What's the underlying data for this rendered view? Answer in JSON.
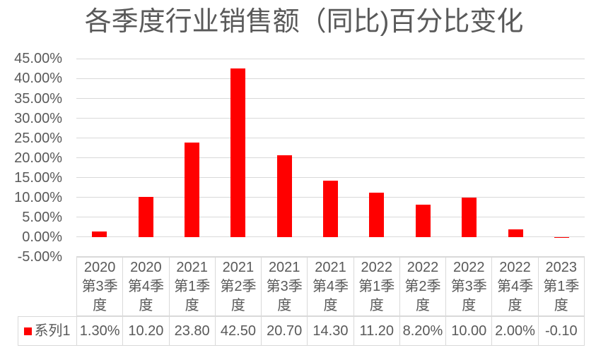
{
  "chart_data": {
    "type": "bar",
    "title": "各季度行业销售额（同比)百分比变化",
    "categories": [
      "2020第3季度",
      "2020第4季度",
      "2021第1季度",
      "2021第2季度",
      "2021第3季度",
      "2021第4季度",
      "2022第1季度",
      "2022第2季度",
      "2022第3季度",
      "2022第4季度",
      "2023第1季度"
    ],
    "series": [
      {
        "name": "系列1",
        "values": [
          1.3,
          10.2,
          23.8,
          42.5,
          20.7,
          14.3,
          11.2,
          8.2,
          10.0,
          2.0,
          -0.1
        ]
      }
    ],
    "xlabel": "",
    "ylabel": "",
    "ylim": [
      -5,
      45
    ],
    "y_tick_step": 5,
    "y_tick_labels": [
      "45.00%",
      "40.00%",
      "35.00%",
      "30.00%",
      "25.00%",
      "20.00%",
      "15.00%",
      "10.00%",
      "5.00%",
      "0.00%",
      "-5.00%"
    ],
    "grid": "horizontal",
    "legend_position": "data-table-left",
    "bar_color": "#FF0000"
  },
  "table": {
    "legend_label": "系列1",
    "header_cells": [
      "2020\n第3季\n度",
      "2020\n第4季\n度",
      "2021\n第1季\n度",
      "2021\n第2季\n度",
      "2021\n第3季\n度",
      "2021\n第4季\n度",
      "2022\n第1季\n度",
      "2022\n第2季\n度",
      "2022\n第3季\n度",
      "2022\n第4季\n度",
      "2023\n第1季\n度"
    ],
    "value_cells": [
      "1.30%",
      "10.20",
      "23.80",
      "42.50",
      "20.70",
      "14.30",
      "11.20",
      "8.20%",
      "10.00",
      "2.00%",
      "-0.10"
    ]
  },
  "colors": {
    "bar": "#FF0000",
    "text": "#595959",
    "gridline": "#D9D9D9",
    "table_border": "#D9D9D9",
    "background": "#FFFFFF"
  }
}
